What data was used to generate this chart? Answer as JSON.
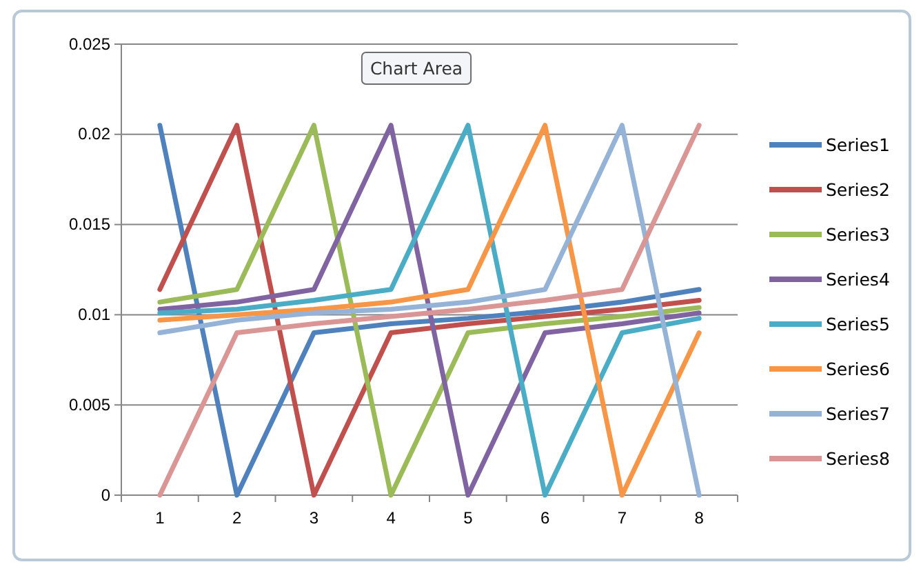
{
  "chart_data": {
    "type": "line",
    "categories": [
      "1",
      "2",
      "3",
      "4",
      "5",
      "6",
      "7",
      "8"
    ],
    "ylim": [
      0,
      0.025
    ],
    "yticks": [
      0,
      0.005,
      0.01,
      0.015,
      0.02,
      0.025
    ],
    "grid": "y",
    "legend": "right",
    "marker": "none",
    "line_style": "solid",
    "annotations": [
      "Chart Area"
    ],
    "series": [
      {
        "name": "Series1",
        "color": "#4f81bd",
        "values": [
          0.0205,
          0,
          0.009,
          0.0095,
          0.0098,
          0.0102,
          0.0107,
          0.0114
        ]
      },
      {
        "name": "Series2",
        "color": "#c0504d",
        "values": [
          0.0114,
          0.0205,
          0,
          0.009,
          0.0095,
          0.0099,
          0.0103,
          0.0108
        ]
      },
      {
        "name": "Series3",
        "color": "#9bbb59",
        "values": [
          0.0107,
          0.0114,
          0.0205,
          0,
          0.009,
          0.0095,
          0.0099,
          0.0104
        ]
      },
      {
        "name": "Series4",
        "color": "#8064a2",
        "values": [
          0.0103,
          0.0107,
          0.0114,
          0.0205,
          0,
          0.009,
          0.0095,
          0.0101
        ]
      },
      {
        "name": "Series5",
        "color": "#4bacc6",
        "values": [
          0.0101,
          0.0103,
          0.0108,
          0.0114,
          0.0205,
          0,
          0.009,
          0.0098
        ]
      },
      {
        "name": "Series6",
        "color": "#f79646",
        "values": [
          0.0097,
          0.01,
          0.0103,
          0.0107,
          0.0114,
          0.0205,
          0,
          0.009
        ]
      },
      {
        "name": "Series7",
        "color": "#95b3d7",
        "values": [
          0.009,
          0.0097,
          0.0101,
          0.0103,
          0.0107,
          0.0114,
          0.0205,
          0
        ]
      },
      {
        "name": "Series8",
        "color": "#d99694",
        "values": [
          0,
          0.009,
          0.0095,
          0.0099,
          0.0103,
          0.0108,
          0.0114,
          0.0205
        ]
      }
    ]
  }
}
